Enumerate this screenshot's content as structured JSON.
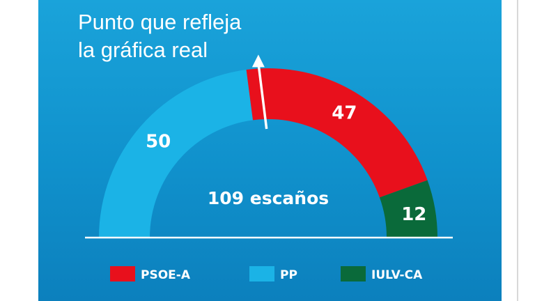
{
  "chart_data": {
    "type": "pie",
    "variant": "half-donut",
    "total_label": "109 escaños",
    "annotation": [
      "Punto que refleja",
      "la gráfica real"
    ],
    "segments": [
      {
        "name": "PP",
        "value": 50,
        "label": "50",
        "color": "#1bb3e6"
      },
      {
        "name": "PSOE-A",
        "value": 47,
        "label": "47",
        "color": "#e8101c"
      },
      {
        "name": "IULV-CA",
        "value": 12,
        "label": "12",
        "color": "#0a6a3a"
      }
    ],
    "legend": [
      {
        "name": "PSOE-A",
        "color": "#e8101c"
      },
      {
        "name": "PP",
        "color": "#1bb3e6"
      },
      {
        "name": "IULV-CA",
        "color": "#0a6a3a"
      }
    ],
    "legend_position": "bottom",
    "marker_fraction": 0.5
  }
}
